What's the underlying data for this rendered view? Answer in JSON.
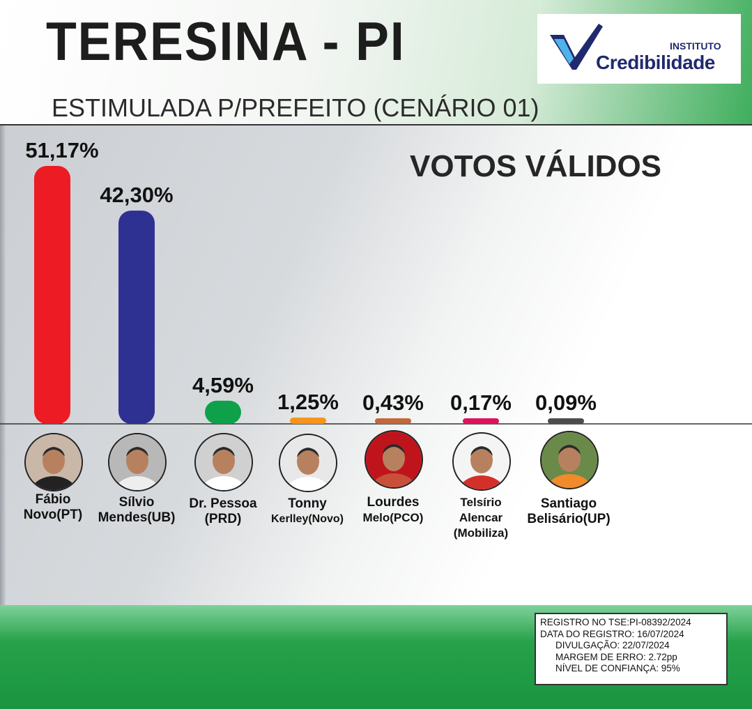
{
  "header": {
    "title": "TERESINA - PI",
    "subtitle": "ESTIMULADA P/PREFEITO (CENÁRIO 01)",
    "logo_small": "INSTITUTO",
    "logo_main": "Credibilidade",
    "section": "VOTOS VÁLIDOS"
  },
  "chart_data": {
    "type": "bar",
    "title": "VOTOS VÁLIDOS",
    "categories": [
      "Fábio Novo(PT)",
      "Sílvio Mendes(UB)",
      "Dr. Pessoa (PRD)",
      "Tonny Kerlley(Novo)",
      "Lourdes Melo(PCO)",
      "Telsírio Alencar (Mobiliza)",
      "Santiago Belisário(UP)"
    ],
    "values": [
      51.17,
      42.3,
      4.59,
      1.25,
      0.43,
      0.17,
      0.09
    ],
    "labels": [
      "51,17%",
      "42,30%",
      "4,59%",
      "1,25%",
      "0,43%",
      "0,17%",
      "0,09%"
    ],
    "colors": [
      "#ed1c24",
      "#2e3192",
      "#0ea14a",
      "#f7941d",
      "#c1693a",
      "#e0115f",
      "#4d4d4d"
    ],
    "ylim": [
      0,
      51.17
    ],
    "grid": false,
    "legend": "none"
  },
  "candidates": [
    {
      "line1": "Fábio",
      "line2": "Novo(PT)",
      "line3": ""
    },
    {
      "line1": "Sílvio",
      "line2": "Mendes(UB)",
      "line3": ""
    },
    {
      "line1": "Dr. Pessoa",
      "line2": "(PRD)",
      "line3": ""
    },
    {
      "line1": "Tonny",
      "line2": "Kerlley(Novo)",
      "line3": ""
    },
    {
      "line1": "Lourdes",
      "line2": "Melo(PCO)",
      "line3": ""
    },
    {
      "line1": "Telsírio",
      "line2": "Alencar",
      "line3": "(Mobiliza)"
    },
    {
      "line1": "Santiago",
      "line2": "Belisário(UP)",
      "line3": ""
    }
  ],
  "registry": {
    "line1": "REGISTRO NO TSE:PI-08392/2024",
    "line2": "DATA DO REGISTRO: 16/07/2024",
    "line3": "DIVULGAÇÃO: 22/07/2024",
    "line4": "MARGEM DE ERRO: 2.72pp",
    "line5": "NÍVEL DE CONFIANÇA: 95%"
  }
}
